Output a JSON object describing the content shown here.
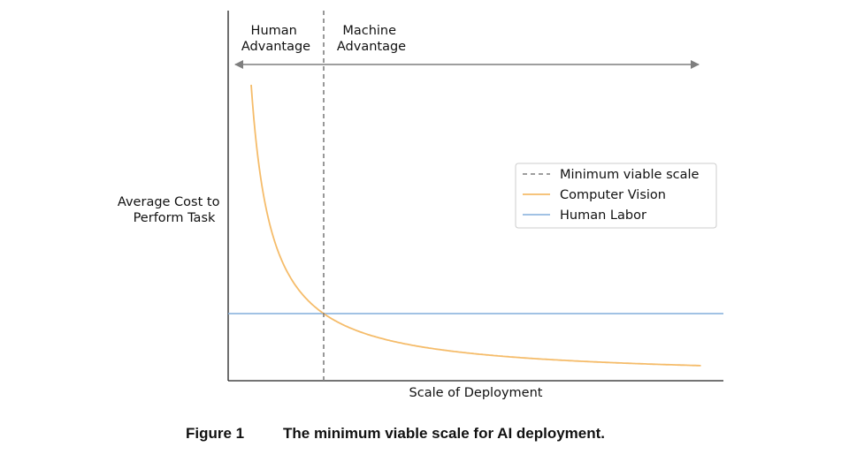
{
  "chart_data": {
    "type": "line",
    "xlabel": "Scale of Deployment",
    "ylabel_lines": [
      "Average Cost to",
      "Perform Task"
    ],
    "x_ticks": "none",
    "y_ticks": "none",
    "grid": false,
    "region_labels": [
      {
        "name": "human-advantage",
        "lines": [
          "Human",
          "Advantage"
        ]
      },
      {
        "name": "machine-advantage",
        "lines": [
          "Machine",
          "Advantage"
        ]
      }
    ],
    "legend": {
      "position": "right",
      "entries": [
        {
          "label": "Minimum viable scale",
          "color": "#7f7f7f",
          "dash": true
        },
        {
          "label": "Computer Vision",
          "color": "#f5bc6a",
          "dash": false
        },
        {
          "label": "Human Labor",
          "color": "#82aedc",
          "dash": false
        }
      ]
    },
    "series": [
      {
        "name": "Computer Vision",
        "curve": "a + b / x",
        "color": "#f5bc6a"
      },
      {
        "name": "Human Labor",
        "constant": true,
        "color": "#82aedc"
      },
      {
        "name": "Minimum viable scale",
        "vertical": true,
        "color": "#7f7f7f"
      }
    ]
  },
  "caption": {
    "label": "Figure 1",
    "title": "The minimum viable scale for AI deployment."
  }
}
